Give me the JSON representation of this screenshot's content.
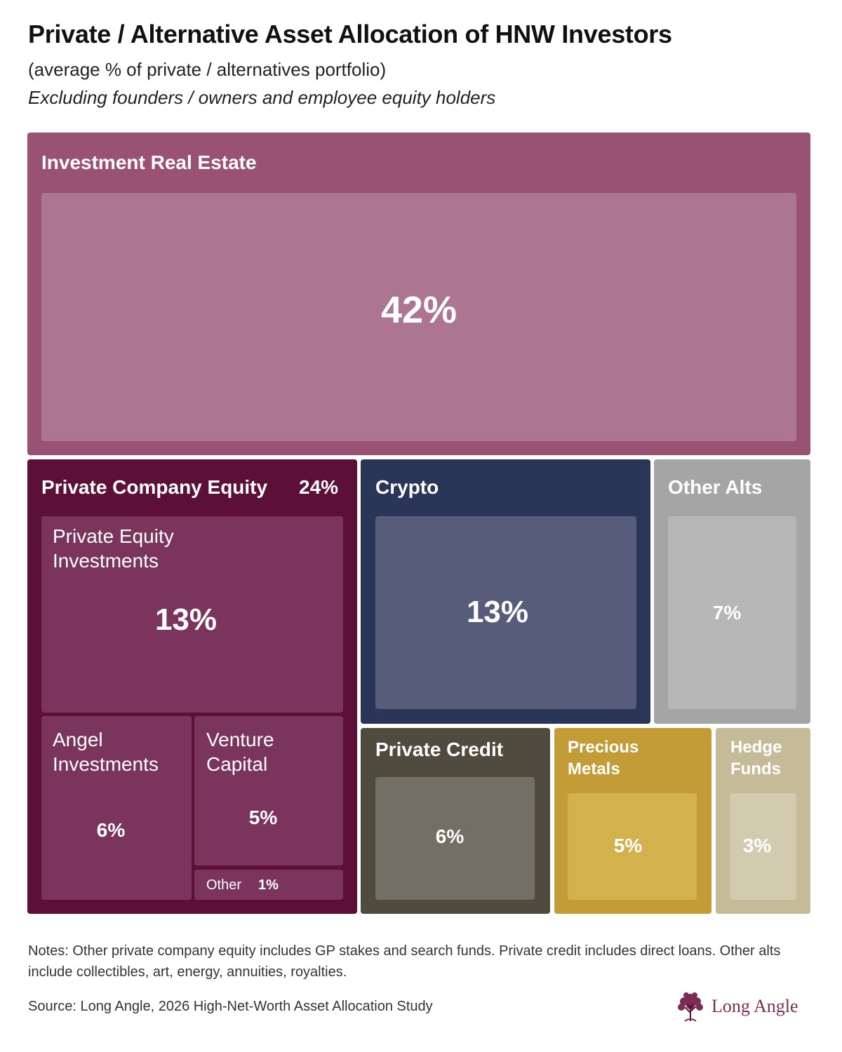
{
  "title": "Private / Alternative Asset Allocation of HNW Investors",
  "subtitle": "(average % of private / alternatives portfolio)",
  "subtitle2": "Excluding founders / owners and employee equity holders",
  "chart_data": {
    "type": "treemap",
    "groups": [
      {
        "name": "Investment Real Estate",
        "value": 42,
        "value_label": "42%"
      },
      {
        "name": "Private Company Equity",
        "value": 24,
        "value_label": "24%",
        "children": [
          {
            "name": "Private Equity Investments",
            "value": 13,
            "value_label": "13%"
          },
          {
            "name": "Angel Investments",
            "value": 6,
            "value_label": "6%"
          },
          {
            "name": "Venture Capital",
            "value": 5,
            "value_label": "5%"
          },
          {
            "name": "Other",
            "value": 1,
            "value_label": "1%"
          }
        ]
      },
      {
        "name": "Crypto",
        "value": 13,
        "value_label": "13%"
      },
      {
        "name": "Other Alts",
        "value": 7,
        "value_label": "7%"
      },
      {
        "name": "Private Credit",
        "value": 6,
        "value_label": "6%"
      },
      {
        "name": "Precious Metals",
        "value": 5,
        "value_label": "5%"
      },
      {
        "name": "Hedge Funds",
        "value": 3,
        "value_label": "3%"
      }
    ],
    "colors": {
      "real_estate": "#9a5274",
      "real_estate_inner": "#ac7591",
      "private_equity": "#5c1038",
      "private_equity_inner": "#7b355c",
      "crypto": "#2b3558",
      "crypto_inner": "#575c7a",
      "other_alts": "#a5a5a5",
      "other_alts_inner": "#b7b7b7",
      "private_credit": "#4f4b3f",
      "private_credit_inner": "#727064",
      "precious_metals": "#c39b37",
      "precious_metals_inner": "#d3b14d",
      "hedge_funds": "#c5bb98",
      "hedge_funds_inner": "#d3cbb0"
    }
  },
  "notes": "Notes: Other private company equity includes GP stakes and search funds. Private credit includes direct loans. Other alts include collectibles, art, energy, annuities, royalties.",
  "source": "Source: Long Angle, 2026 High-Net-Worth Asset Allocation Study",
  "logo": {
    "text": "Long Angle",
    "icon": "tree-icon"
  }
}
